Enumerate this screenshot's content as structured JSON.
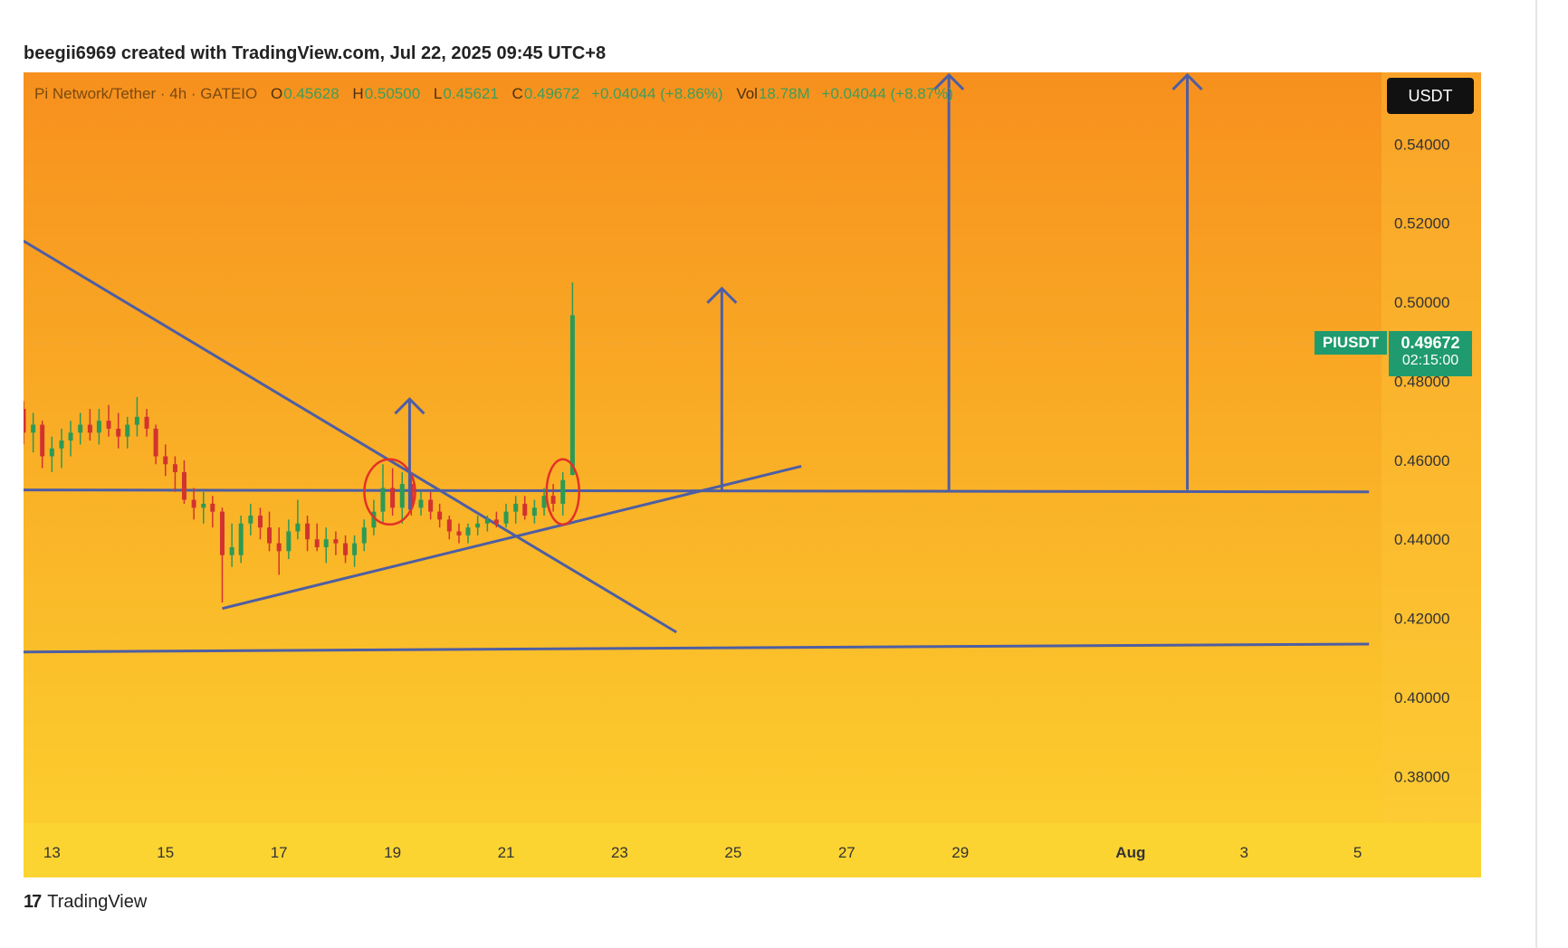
{
  "header": {
    "credit": "beegii6969 created with TradingView.com, Jul 22, 2025 09:45 UTC+8"
  },
  "legend": {
    "title": "Pi Network/Tether · 4h · GATEIO",
    "o_label": "O",
    "o_value": "0.45628",
    "h_label": "H",
    "h_value": "0.50500",
    "l_label": "L",
    "l_value": "0.45621",
    "c_label": "C",
    "c_value": "0.49672",
    "change": "+0.04044 (+8.86%)",
    "vol_label": "Vol",
    "vol_value": "18.78M",
    "vol_change": "+0.04044 (+8.87%)"
  },
  "currency_button": "USDT",
  "price_tag": {
    "symbol": "PIUSDT",
    "price": "0.49672",
    "countdown": "02:15:00"
  },
  "footer": {
    "brand": "TradingView",
    "brand_mark": "17"
  },
  "colors": {
    "bg_top": "#f7901e",
    "bg_bottom": "#fcd12f",
    "up": "#2b9a56",
    "down": "#d2332f",
    "line": "#4e5ea3",
    "circle": "#e33127"
  },
  "chart_data": {
    "type": "candlestick",
    "title": "Pi Network/Tether · 4h · GATEIO",
    "ylim": [
      0.37,
      0.56
    ],
    "y_ticks": [
      0.54,
      0.52,
      0.5,
      0.48,
      0.46,
      0.44,
      0.42,
      0.4,
      0.38
    ],
    "y_tick_labels": [
      "0.54000",
      "0.52000",
      "0.50000",
      "0.48000",
      "0.46000",
      "0.44000",
      "0.42000",
      "0.40000",
      "0.38000"
    ],
    "x_ticks": [
      {
        "label": "13",
        "day": 13
      },
      {
        "label": "15",
        "day": 15
      },
      {
        "label": "17",
        "day": 17
      },
      {
        "label": "19",
        "day": 19
      },
      {
        "label": "21",
        "day": 21
      },
      {
        "label": "23",
        "day": 23
      },
      {
        "label": "25",
        "day": 25
      },
      {
        "label": "27",
        "day": 27
      },
      {
        "label": "29",
        "day": 29
      },
      {
        "label": "Aug",
        "day": 32
      },
      {
        "label": "3",
        "day": 34
      },
      {
        "label": "5",
        "day": 36
      }
    ],
    "candles": [
      {
        "day": 12.5,
        "o": 0.473,
        "h": 0.475,
        "l": 0.464,
        "c": 0.467
      },
      {
        "day": 12.67,
        "o": 0.467,
        "h": 0.472,
        "l": 0.462,
        "c": 0.469
      },
      {
        "day": 12.83,
        "o": 0.469,
        "h": 0.47,
        "l": 0.458,
        "c": 0.461
      },
      {
        "day": 13.0,
        "o": 0.461,
        "h": 0.466,
        "l": 0.457,
        "c": 0.463
      },
      {
        "day": 13.17,
        "o": 0.463,
        "h": 0.468,
        "l": 0.458,
        "c": 0.465
      },
      {
        "day": 13.33,
        "o": 0.465,
        "h": 0.47,
        "l": 0.461,
        "c": 0.467
      },
      {
        "day": 13.5,
        "o": 0.467,
        "h": 0.472,
        "l": 0.464,
        "c": 0.469
      },
      {
        "day": 13.67,
        "o": 0.469,
        "h": 0.473,
        "l": 0.465,
        "c": 0.467
      },
      {
        "day": 13.83,
        "o": 0.467,
        "h": 0.473,
        "l": 0.464,
        "c": 0.47
      },
      {
        "day": 14.0,
        "o": 0.47,
        "h": 0.474,
        "l": 0.466,
        "c": 0.468
      },
      {
        "day": 14.17,
        "o": 0.468,
        "h": 0.472,
        "l": 0.463,
        "c": 0.466
      },
      {
        "day": 14.33,
        "o": 0.466,
        "h": 0.471,
        "l": 0.463,
        "c": 0.469
      },
      {
        "day": 14.5,
        "o": 0.469,
        "h": 0.476,
        "l": 0.466,
        "c": 0.471
      },
      {
        "day": 14.67,
        "o": 0.471,
        "h": 0.473,
        "l": 0.466,
        "c": 0.468
      },
      {
        "day": 14.83,
        "o": 0.468,
        "h": 0.469,
        "l": 0.459,
        "c": 0.461
      },
      {
        "day": 15.0,
        "o": 0.461,
        "h": 0.464,
        "l": 0.456,
        "c": 0.459
      },
      {
        "day": 15.17,
        "o": 0.459,
        "h": 0.461,
        "l": 0.452,
        "c": 0.457
      },
      {
        "day": 15.33,
        "o": 0.457,
        "h": 0.46,
        "l": 0.449,
        "c": 0.45
      },
      {
        "day": 15.5,
        "o": 0.45,
        "h": 0.453,
        "l": 0.445,
        "c": 0.448
      },
      {
        "day": 15.67,
        "o": 0.448,
        "h": 0.452,
        "l": 0.444,
        "c": 0.449
      },
      {
        "day": 15.83,
        "o": 0.449,
        "h": 0.451,
        "l": 0.443,
        "c": 0.447
      },
      {
        "day": 16.0,
        "o": 0.447,
        "h": 0.448,
        "l": 0.424,
        "c": 0.436
      },
      {
        "day": 16.17,
        "o": 0.436,
        "h": 0.444,
        "l": 0.433,
        "c": 0.438
      },
      {
        "day": 16.33,
        "o": 0.436,
        "h": 0.446,
        "l": 0.434,
        "c": 0.444
      },
      {
        "day": 16.5,
        "o": 0.444,
        "h": 0.449,
        "l": 0.441,
        "c": 0.446
      },
      {
        "day": 16.67,
        "o": 0.446,
        "h": 0.448,
        "l": 0.44,
        "c": 0.443
      },
      {
        "day": 16.83,
        "o": 0.443,
        "h": 0.447,
        "l": 0.437,
        "c": 0.439
      },
      {
        "day": 17.0,
        "o": 0.439,
        "h": 0.443,
        "l": 0.431,
        "c": 0.437
      },
      {
        "day": 17.17,
        "o": 0.437,
        "h": 0.445,
        "l": 0.435,
        "c": 0.442
      },
      {
        "day": 17.33,
        "o": 0.442,
        "h": 0.45,
        "l": 0.44,
        "c": 0.444
      },
      {
        "day": 17.5,
        "o": 0.444,
        "h": 0.446,
        "l": 0.437,
        "c": 0.44
      },
      {
        "day": 17.67,
        "o": 0.44,
        "h": 0.444,
        "l": 0.437,
        "c": 0.438
      },
      {
        "day": 17.83,
        "o": 0.438,
        "h": 0.443,
        "l": 0.434,
        "c": 0.44
      },
      {
        "day": 18.0,
        "o": 0.44,
        "h": 0.442,
        "l": 0.436,
        "c": 0.439
      },
      {
        "day": 18.17,
        "o": 0.439,
        "h": 0.441,
        "l": 0.434,
        "c": 0.436
      },
      {
        "day": 18.33,
        "o": 0.436,
        "h": 0.441,
        "l": 0.433,
        "c": 0.439
      },
      {
        "day": 18.5,
        "o": 0.439,
        "h": 0.445,
        "l": 0.437,
        "c": 0.443
      },
      {
        "day": 18.67,
        "o": 0.443,
        "h": 0.45,
        "l": 0.441,
        "c": 0.447
      },
      {
        "day": 18.83,
        "o": 0.447,
        "h": 0.459,
        "l": 0.444,
        "c": 0.453
      },
      {
        "day": 19.0,
        "o": 0.453,
        "h": 0.458,
        "l": 0.446,
        "c": 0.448
      },
      {
        "day": 19.17,
        "o": 0.448,
        "h": 0.457,
        "l": 0.444,
        "c": 0.454
      },
      {
        "day": 19.33,
        "o": 0.454,
        "h": 0.456,
        "l": 0.446,
        "c": 0.448
      },
      {
        "day": 19.5,
        "o": 0.448,
        "h": 0.452,
        "l": 0.446,
        "c": 0.45
      },
      {
        "day": 19.67,
        "o": 0.45,
        "h": 0.452,
        "l": 0.445,
        "c": 0.447
      },
      {
        "day": 19.83,
        "o": 0.447,
        "h": 0.449,
        "l": 0.443,
        "c": 0.445
      },
      {
        "day": 20.0,
        "o": 0.445,
        "h": 0.446,
        "l": 0.44,
        "c": 0.442
      },
      {
        "day": 20.17,
        "o": 0.442,
        "h": 0.444,
        "l": 0.439,
        "c": 0.441
      },
      {
        "day": 20.33,
        "o": 0.441,
        "h": 0.444,
        "l": 0.439,
        "c": 0.443
      },
      {
        "day": 20.5,
        "o": 0.443,
        "h": 0.446,
        "l": 0.441,
        "c": 0.444
      },
      {
        "day": 20.67,
        "o": 0.444,
        "h": 0.446,
        "l": 0.442,
        "c": 0.445
      },
      {
        "day": 20.83,
        "o": 0.445,
        "h": 0.447,
        "l": 0.443,
        "c": 0.444
      },
      {
        "day": 21.0,
        "o": 0.444,
        "h": 0.449,
        "l": 0.443,
        "c": 0.447
      },
      {
        "day": 21.17,
        "o": 0.447,
        "h": 0.451,
        "l": 0.444,
        "c": 0.449
      },
      {
        "day": 21.33,
        "o": 0.449,
        "h": 0.451,
        "l": 0.445,
        "c": 0.446
      },
      {
        "day": 21.5,
        "o": 0.446,
        "h": 0.45,
        "l": 0.444,
        "c": 0.448
      },
      {
        "day": 21.67,
        "o": 0.448,
        "h": 0.453,
        "l": 0.446,
        "c": 0.451
      },
      {
        "day": 21.83,
        "o": 0.451,
        "h": 0.454,
        "l": 0.447,
        "c": 0.449
      },
      {
        "day": 22.0,
        "o": 0.449,
        "h": 0.457,
        "l": 0.446,
        "c": 0.455
      },
      {
        "day": 22.17,
        "o": 0.4563,
        "h": 0.505,
        "l": 0.4562,
        "c": 0.4967
      }
    ],
    "annotations": {
      "downtrend_line": [
        {
          "day": 12.5,
          "price": 0.5155
        },
        {
          "day": 24.0,
          "price": 0.4165
        }
      ],
      "support_uptrend_line": [
        {
          "day": 16.0,
          "price": 0.4225
        },
        {
          "day": 26.2,
          "price": 0.4585
        }
      ],
      "horizontal_resistance": [
        {
          "day": 12.5,
          "price": 0.4525
        },
        {
          "day": 36.2,
          "price": 0.452
        }
      ],
      "horizontal_support": [
        {
          "day": 12.5,
          "price": 0.4115
        },
        {
          "day": 36.2,
          "price": 0.4135
        }
      ],
      "arrows": [
        {
          "day": 19.3,
          "from": 0.4475,
          "to": 0.4755
        },
        {
          "day": 24.8,
          "from": 0.4525,
          "to": 0.5035
        },
        {
          "day": 28.8,
          "from": 0.4525,
          "to": 0.5575
        },
        {
          "day": 33.0,
          "from": 0.4525,
          "to": 0.5575
        }
      ],
      "circles": [
        {
          "day": 18.95,
          "price": 0.452
        },
        {
          "day": 22.0,
          "price": 0.452
        }
      ]
    }
  }
}
